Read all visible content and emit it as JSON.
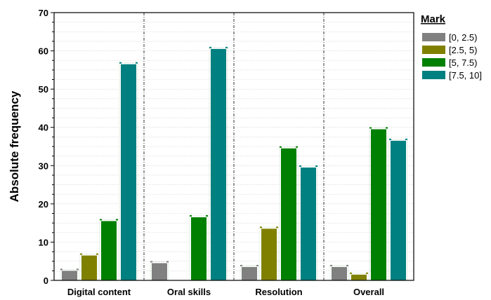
{
  "chart_data": {
    "type": "bar",
    "title": "",
    "xlabel": "",
    "ylabel": "Absolute frequency",
    "ylim": [
      0,
      70
    ],
    "yticks": [
      0,
      10,
      20,
      30,
      40,
      50,
      60,
      70
    ],
    "grid": true,
    "categories": [
      "Digital content",
      "Oral skills",
      "Resolution",
      "Overall"
    ],
    "legend": {
      "title": "Mark",
      "placement": "right"
    },
    "series": [
      {
        "name": "[0, 2.5)",
        "color": "#808080",
        "values": [
          2.5,
          4.5,
          3.5,
          3.5
        ]
      },
      {
        "name": "[2.5, 5)",
        "color": "#808000",
        "values": [
          6.5,
          0,
          13.5,
          1.5
        ]
      },
      {
        "name": "[5, 7.5)",
        "color": "#008000",
        "values": [
          15.5,
          16.5,
          34.5,
          39.5
        ]
      },
      {
        "name": "[7.5, 10]",
        "color": "#008080",
        "values": [
          56.5,
          60.5,
          29.5,
          36.5
        ]
      }
    ]
  }
}
